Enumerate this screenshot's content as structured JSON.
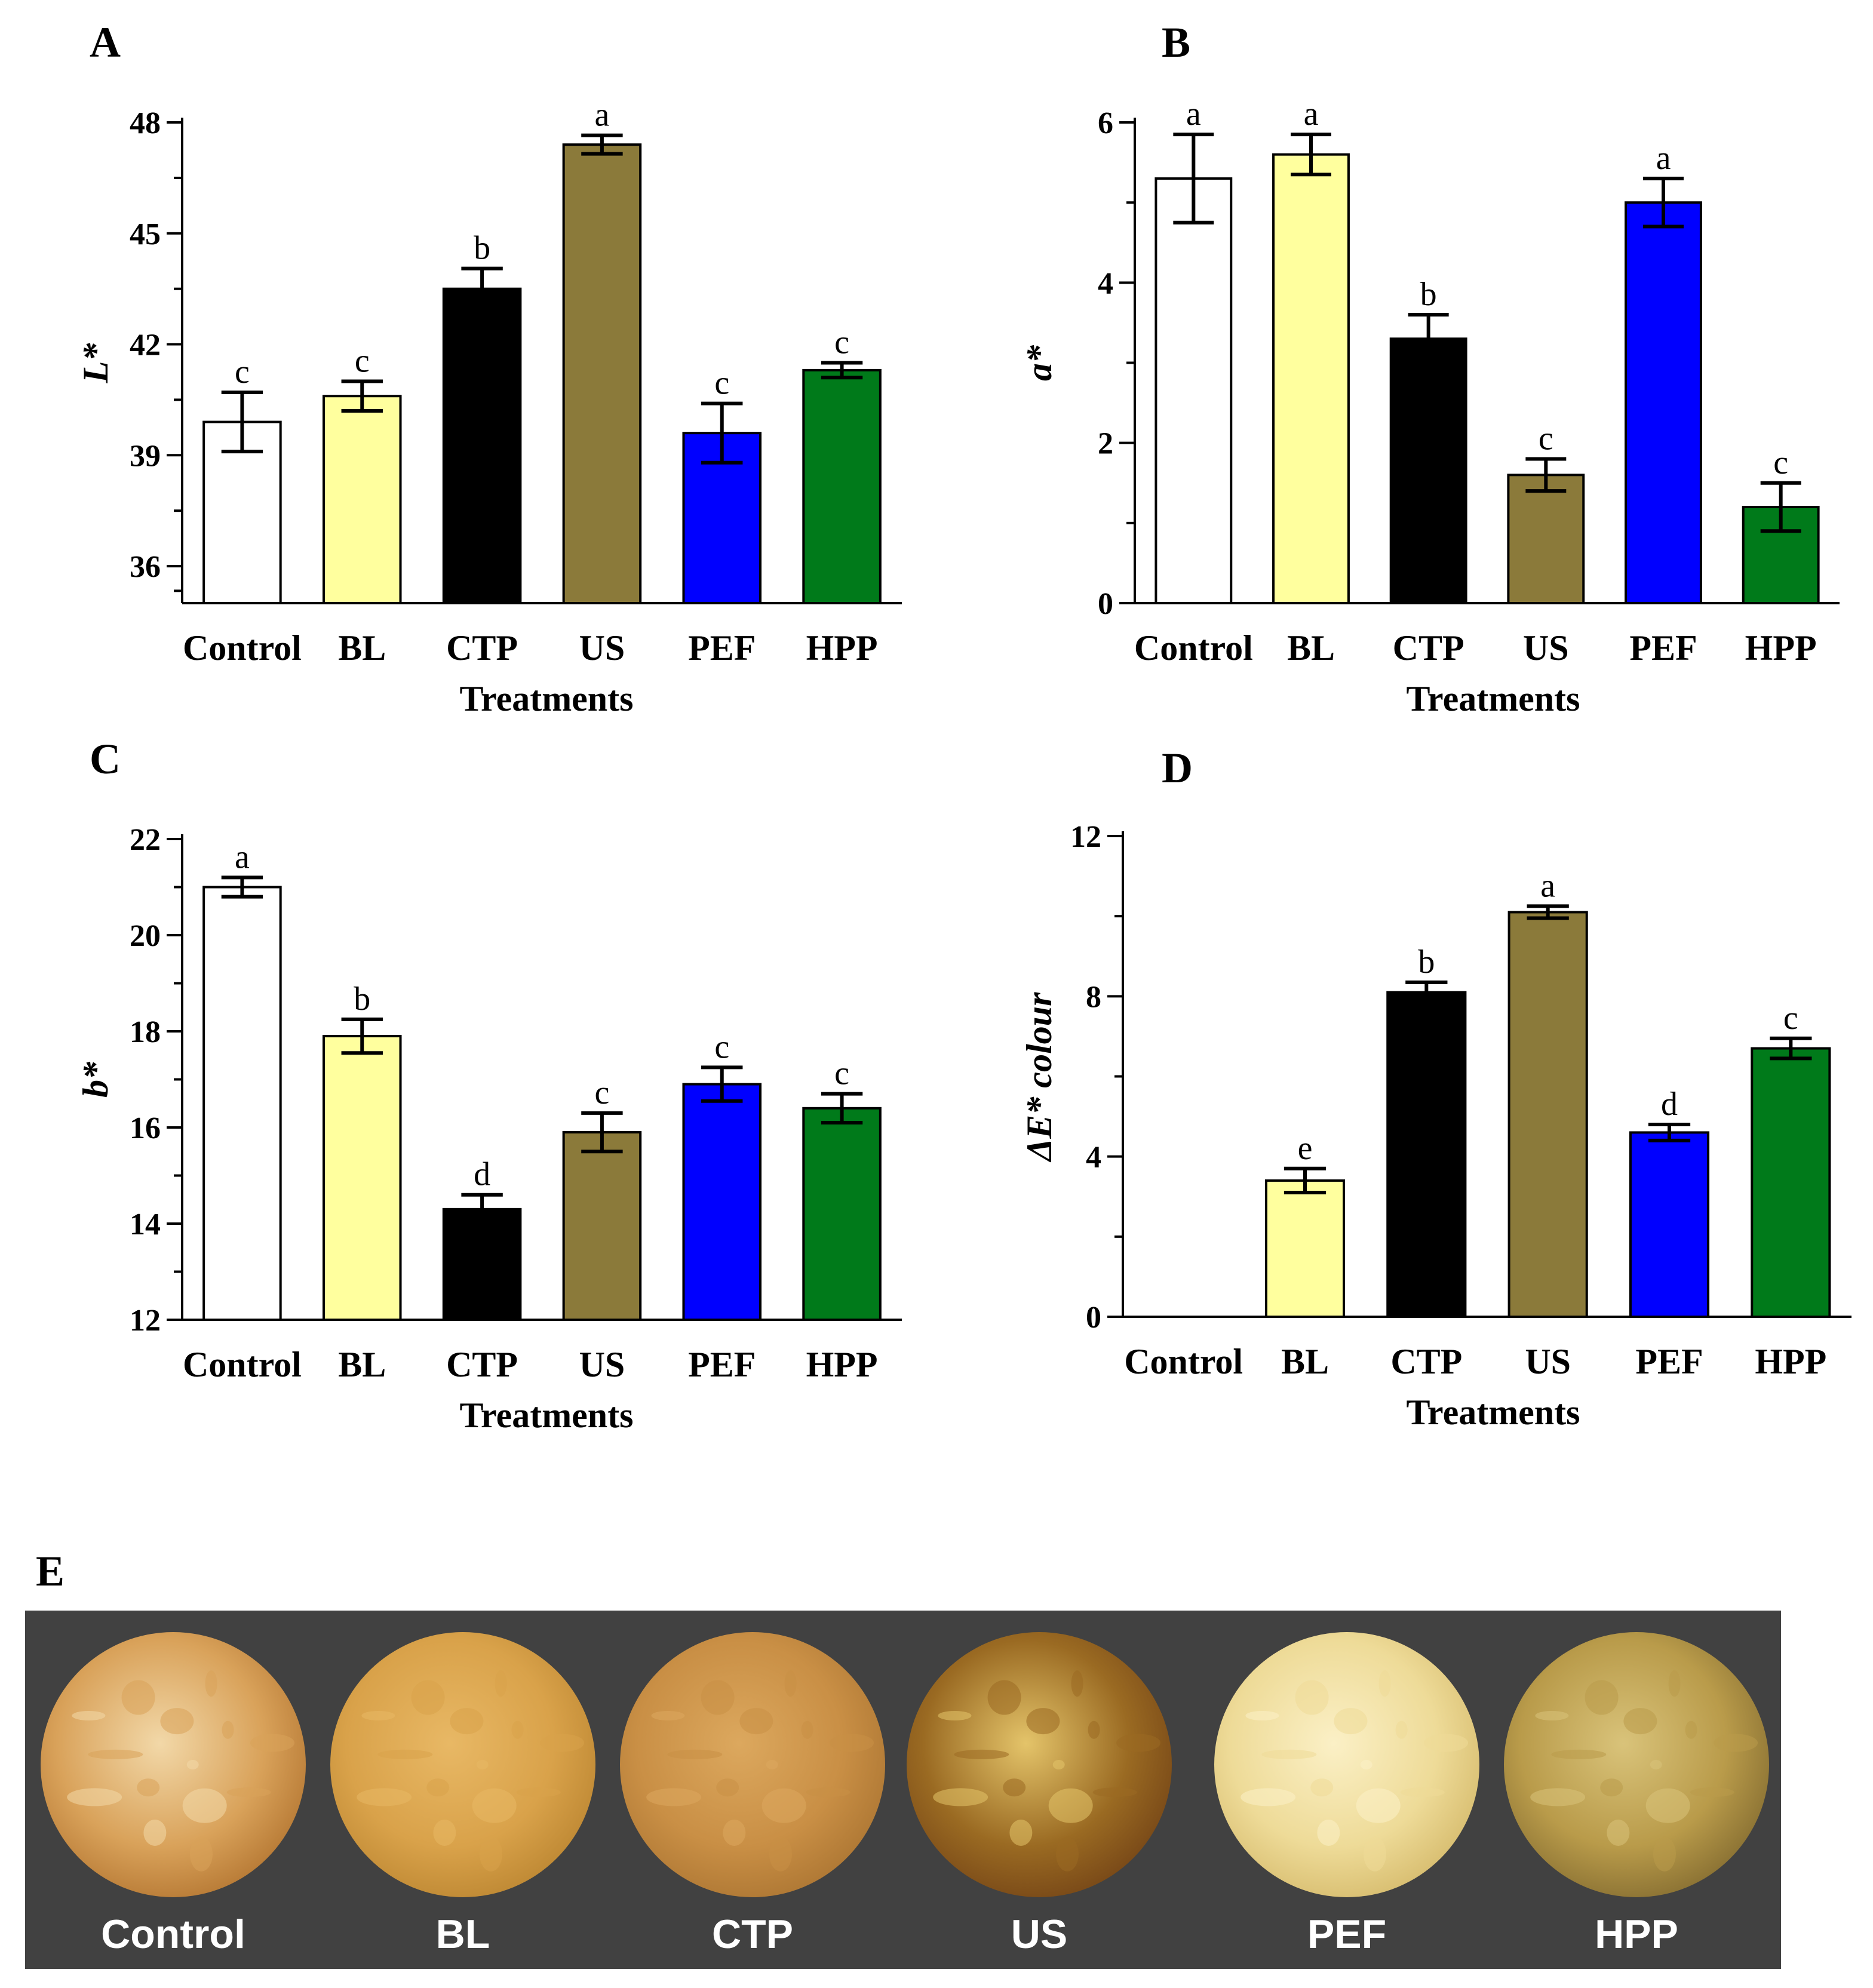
{
  "chart_data": [
    {
      "panel": "A",
      "type": "bar",
      "categories": [
        "Control",
        "BL",
        "CTP",
        "US",
        "PEF",
        "HPP"
      ],
      "values": [
        39.9,
        40.6,
        43.5,
        47.4,
        39.6,
        41.3
      ],
      "errors": [
        0.8,
        0.4,
        0.55,
        0.25,
        0.8,
        0.2
      ],
      "letters": [
        "c",
        "c",
        "b",
        "a",
        "c",
        "c"
      ],
      "colors": [
        "#ffffff",
        "#ffff9e",
        "#000000",
        "#8b7a3a",
        "#0000ff",
        "#007a1a"
      ],
      "xlabel": "Treatments",
      "ylabel": "L*",
      "ylim": [
        35,
        48
      ],
      "yticks": [
        36,
        39,
        42,
        45,
        48
      ],
      "ytick_labels": [
        "36",
        "39",
        "42",
        "45",
        "48"
      ]
    },
    {
      "panel": "B",
      "type": "bar",
      "categories": [
        "Control",
        "BL",
        "CTP",
        "US",
        "PEF",
        "HPP"
      ],
      "values": [
        5.3,
        5.6,
        3.3,
        1.6,
        5.0,
        1.2
      ],
      "errors": [
        0.55,
        0.25,
        0.3,
        0.2,
        0.3,
        0.3
      ],
      "letters": [
        "a",
        "a",
        "b",
        "c",
        "a",
        "c"
      ],
      "colors": [
        "#ffffff",
        "#ffff9e",
        "#000000",
        "#8b7a3a",
        "#0000ff",
        "#007a1a"
      ],
      "xlabel": "Treatments",
      "ylabel": "a*",
      "ylim": [
        0,
        6
      ],
      "yticks": [
        0,
        2,
        4,
        6
      ],
      "ytick_labels": [
        "0",
        "2",
        "4",
        "6"
      ]
    },
    {
      "panel": "C",
      "type": "bar",
      "categories": [
        "Control",
        "BL",
        "CTP",
        "US",
        "PEF",
        "HPP"
      ],
      "values": [
        21.0,
        17.9,
        14.3,
        15.9,
        16.9,
        16.4
      ],
      "errors": [
        0.2,
        0.35,
        0.3,
        0.4,
        0.35,
        0.3
      ],
      "letters": [
        "a",
        "b",
        "d",
        "c",
        "c",
        "c"
      ],
      "colors": [
        "#ffffff",
        "#ffff9e",
        "#000000",
        "#8b7a3a",
        "#0000ff",
        "#007a1a"
      ],
      "xlabel": "Treatments",
      "ylabel": "b*",
      "ylim": [
        12,
        22
      ],
      "yticks": [
        12,
        14,
        16,
        18,
        20,
        22
      ],
      "ytick_labels": [
        "12",
        "14",
        "16",
        "18",
        "20",
        "22"
      ]
    },
    {
      "panel": "D",
      "type": "bar",
      "categories": [
        "Control",
        "BL",
        "CTP",
        "US",
        "PEF",
        "HPP"
      ],
      "values": [
        0,
        3.4,
        8.1,
        10.1,
        4.6,
        6.7
      ],
      "errors": [
        0,
        0.3,
        0.25,
        0.15,
        0.2,
        0.25
      ],
      "letters": [
        "",
        "e",
        "b",
        "a",
        "d",
        "c"
      ],
      "colors": [
        "#ffffff",
        "#ffff9e",
        "#000000",
        "#8b7a3a",
        "#0000ff",
        "#007a1a"
      ],
      "xlabel": "Treatments",
      "ylabel": "ΔE* colour",
      "ylim": [
        0,
        12
      ],
      "yticks": [
        0,
        4,
        8,
        12
      ],
      "ytick_labels": [
        "0",
        "4",
        "8",
        "12"
      ]
    }
  ],
  "photo_panel": {
    "letter": "E",
    "background": "#414141",
    "samples": [
      {
        "label": "Control",
        "base": "#f2d8a8",
        "mid": "#d9a25a",
        "edge": "#b97c37"
      },
      {
        "label": "BL",
        "base": "#e8b865",
        "mid": "#d9a24a",
        "edge": "#c08a35"
      },
      {
        "label": "CTP",
        "base": "#dca85e",
        "mid": "#c98f45",
        "edge": "#b07935"
      },
      {
        "label": "US",
        "base": "#e4c46a",
        "mid": "#9a6a22",
        "edge": "#7a4a18"
      },
      {
        "label": "PEF",
        "base": "#fbf0c6",
        "mid": "#eedb98",
        "edge": "#d9bf72"
      },
      {
        "label": "HPP",
        "base": "#d9c37a",
        "mid": "#b99b4a",
        "edge": "#8c7334"
      }
    ]
  }
}
